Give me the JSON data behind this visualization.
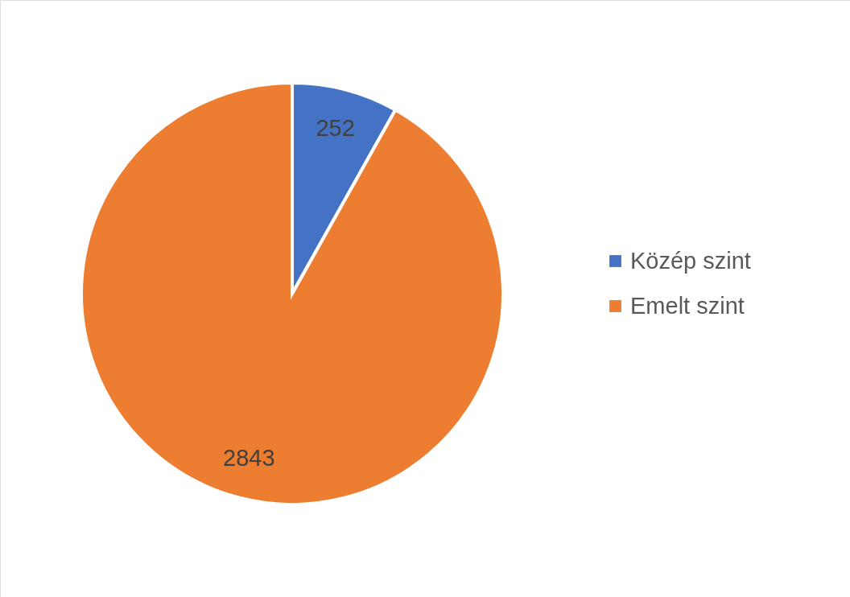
{
  "chart_data": {
    "type": "pie",
    "categories": [
      "Közép szint",
      "Emelt szint"
    ],
    "values": [
      252,
      2843
    ],
    "colors": [
      "#4472c4",
      "#ed7d31"
    ],
    "data_labels": true,
    "legend": "right"
  }
}
